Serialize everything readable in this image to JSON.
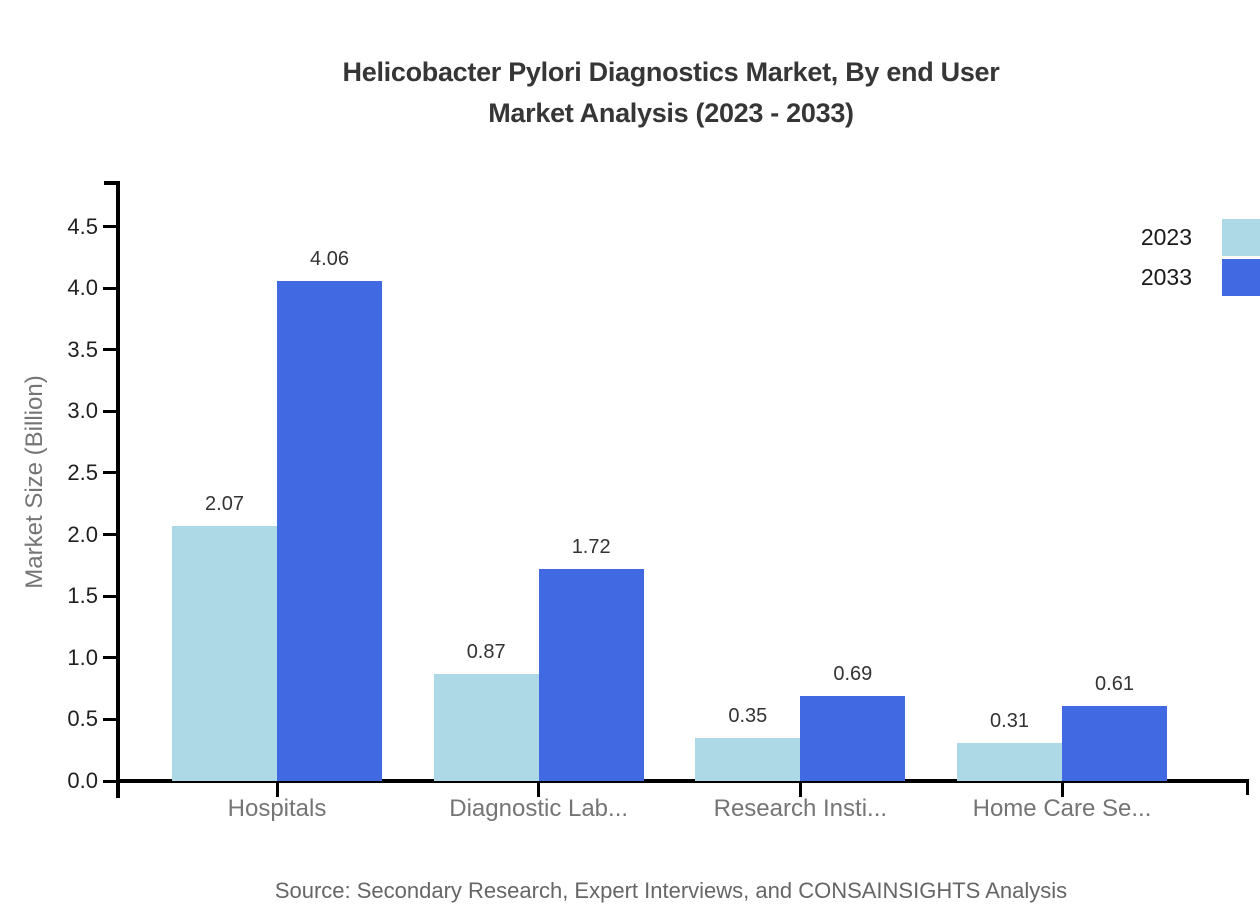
{
  "title": {
    "line1": "Helicobacter Pylori Diagnostics Market, By end User",
    "line2": "Market Analysis (2023 - 2033)"
  },
  "source": "Source: Secondary Research, Expert Interviews, and CONSAINSIGHTS Analysis",
  "chart_data": {
    "type": "bar",
    "categories": [
      "Hospitals",
      "Diagnostic Lab...",
      "Research Insti...",
      "Home Care Se..."
    ],
    "series": [
      {
        "name": "2023",
        "color": "#ADD8E6",
        "values": [
          2.07,
          0.87,
          0.35,
          0.31
        ]
      },
      {
        "name": "2033",
        "color": "#4169E1",
        "values": [
          4.06,
          1.72,
          0.69,
          0.61
        ]
      }
    ],
    "value_labels": [
      [
        "2.07",
        "0.87",
        "0.35",
        "0.31"
      ],
      [
        "4.06",
        "1.72",
        "0.69",
        "0.61"
      ]
    ],
    "title": "Helicobacter Pylori Diagnostics Market, By end User Market Analysis (2023 - 2033)",
    "xlabel": "",
    "ylabel": "Market Size (Billion)",
    "yticks": [
      "0.0",
      "0.5",
      "1.0",
      "1.5",
      "2.0",
      "2.5",
      "3.0",
      "3.5",
      "4.0",
      "4.5"
    ],
    "ylim": [
      0,
      4.87
    ],
    "grid": false,
    "legend_position": "top-right",
    "background": "#ffffff",
    "axis_color": "#000000",
    "category_label_color": "#757575",
    "value_label_color": "#333333"
  }
}
